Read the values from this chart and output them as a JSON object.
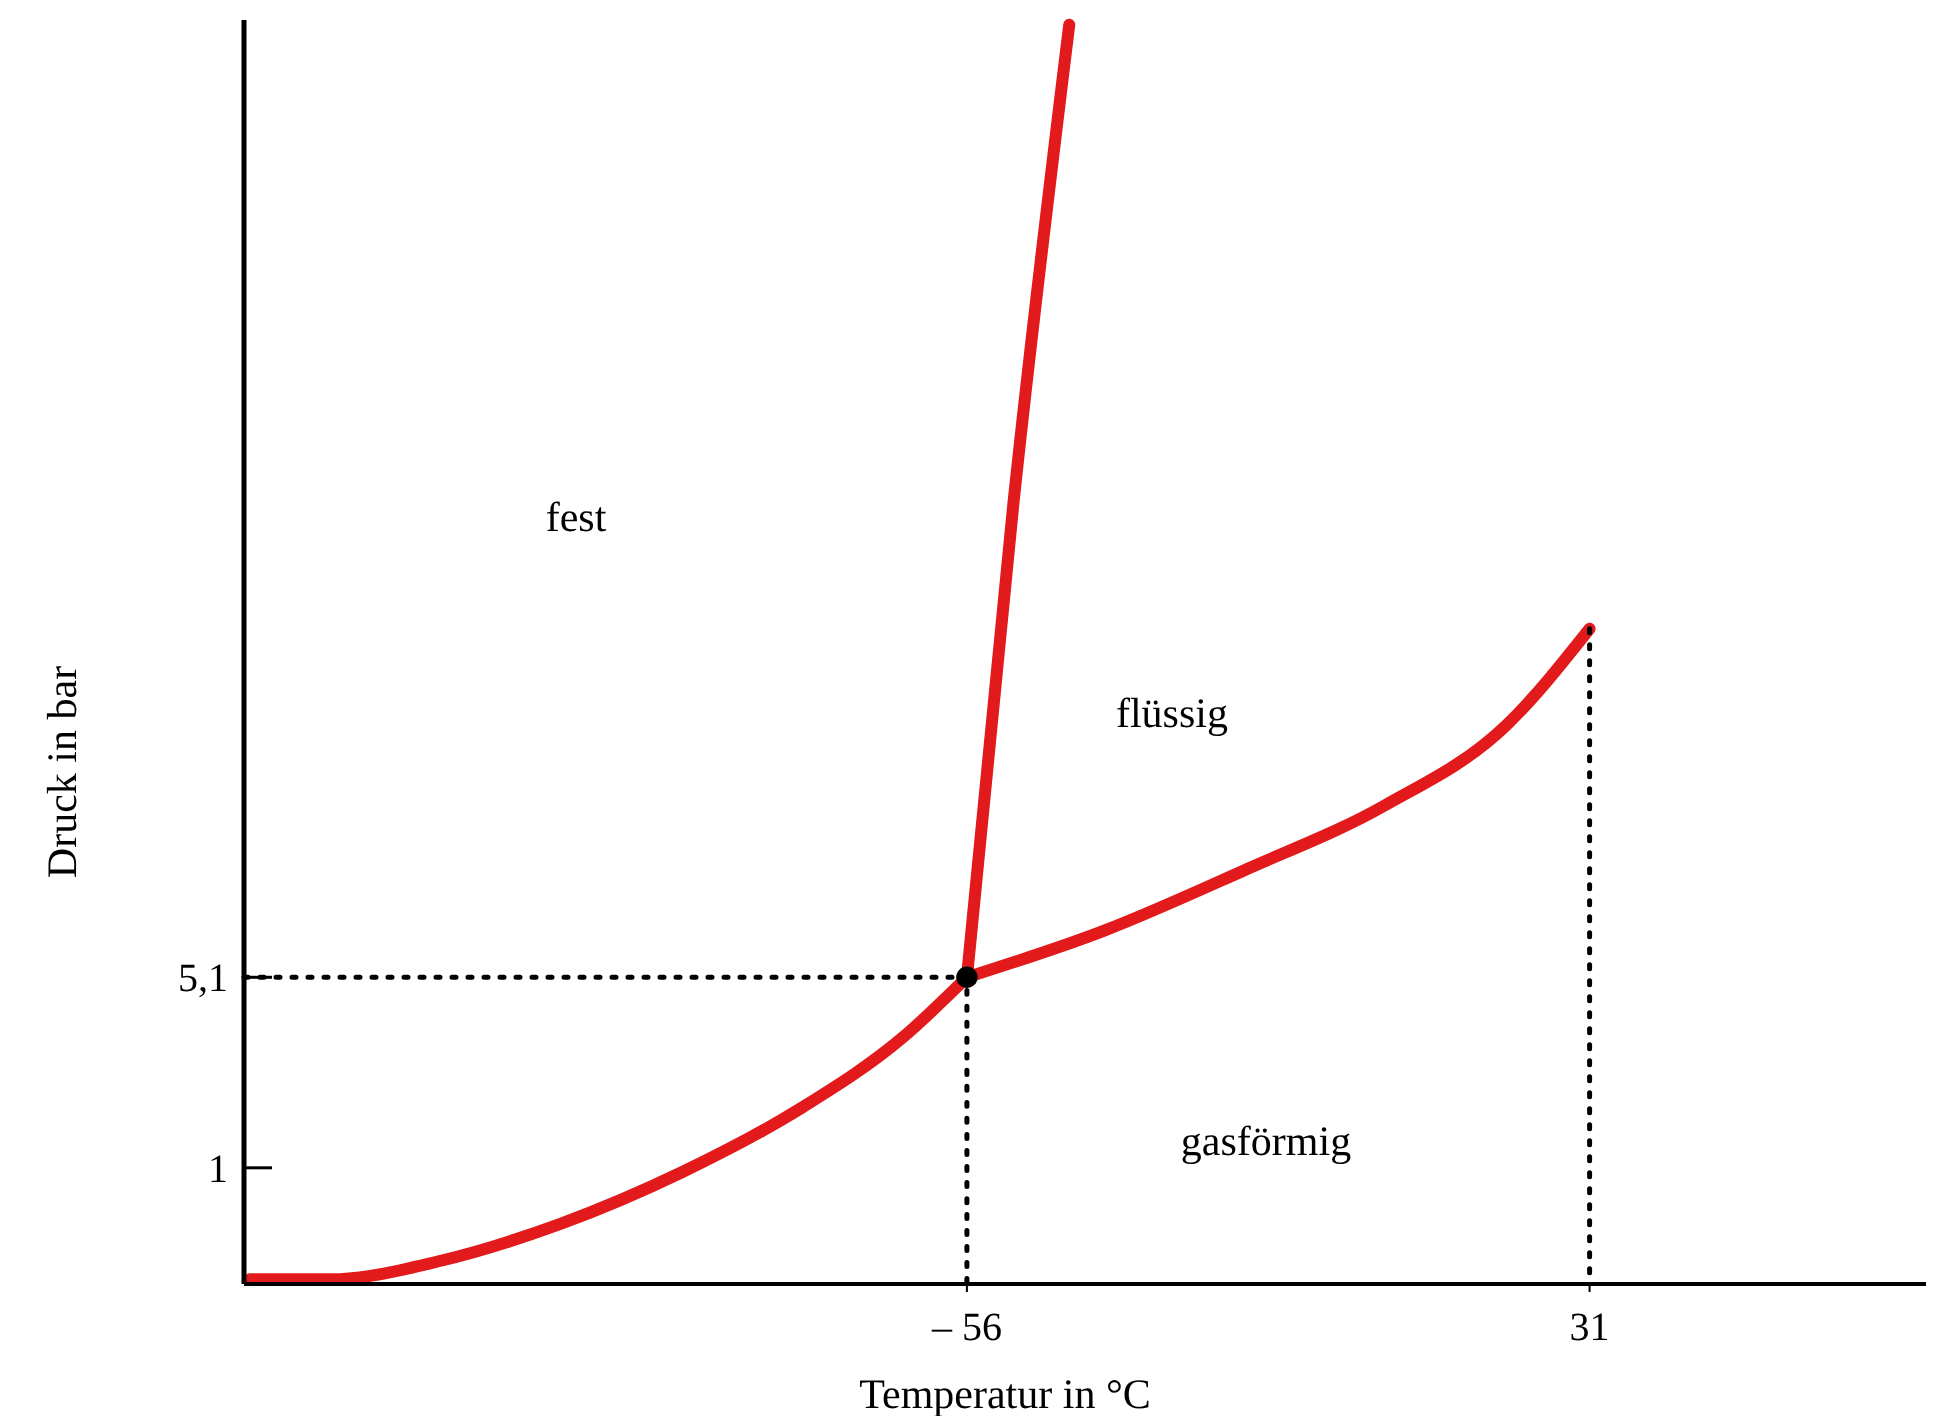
{
  "chart_data": {
    "type": "line",
    "xlabel": "Temperatur in °C",
    "ylabel": "Druck in bar",
    "xlim": [
      -157,
      78
    ],
    "ylim": [
      -1.5,
      25.7
    ],
    "xticks": [
      {
        "value": -56,
        "label": "– 56"
      },
      31
    ],
    "yticks": [
      1,
      {
        "value": 5.1,
        "label": "5,1"
      }
    ],
    "grid": false,
    "marker": "none",
    "line_style": "solid",
    "series": [
      {
        "color": "#e31a1c",
        "x": [
          -156.2,
          -145,
          -129.5,
          -112.7,
          -95.9,
          -79,
          -65,
          -56
        ],
        "values": [
          -1.4,
          -1.4,
          -1,
          -0.2,
          0.9,
          2.3,
          3.8,
          5.1
        ]
      },
      {
        "color": "#e31a1c",
        "x": [
          -56,
          -49.5,
          -41.7
        ],
        "values": [
          5.1,
          15.3,
          25.6
        ]
      },
      {
        "color": "#e31a1c",
        "x": [
          -56,
          -36.9,
          -17.3,
          2.4,
          19.2,
          31
        ],
        "values": [
          5.1,
          6.1,
          7.4,
          8.8,
          10.5,
          12.6
        ]
      },
      {
        "color": "#000000",
        "line_style": "dotted",
        "x": [
          -157,
          -56,
          -56
        ],
        "values": [
          5.1,
          5.1,
          -1.5
        ]
      },
      {
        "color": "#000000",
        "line_style": "dotted",
        "x": [
          31,
          31
        ],
        "values": [
          12.6,
          -1.5
        ]
      },
      {
        "type": "scatter",
        "color": "#000000",
        "marker": "circle",
        "x": [
          -56
        ],
        "values": [
          5.1
        ]
      }
    ],
    "annotations": [
      "fest",
      "flüssig",
      "gasförmig"
    ]
  }
}
